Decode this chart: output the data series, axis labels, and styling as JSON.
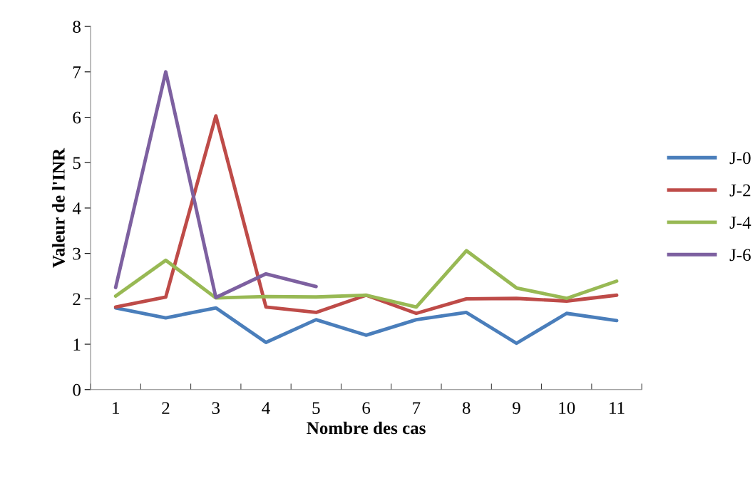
{
  "chart_data": {
    "type": "line",
    "xlabel": "Nombre des cas",
    "ylabel": "Valeur de l'INR",
    "categories": [
      "1",
      "2",
      "3",
      "4",
      "5",
      "6",
      "7",
      "8",
      "9",
      "10",
      "11"
    ],
    "series": [
      {
        "name": "J-0",
        "color": "#4a7ebb",
        "values": [
          1.8,
          1.58,
          1.8,
          1.04,
          1.54,
          1.2,
          1.54,
          1.7,
          1.02,
          1.68,
          1.52
        ]
      },
      {
        "name": "J-2",
        "color": "#be4b48",
        "values": [
          1.82,
          2.04,
          6.03,
          1.82,
          1.7,
          2.08,
          1.68,
          2.0,
          2.01,
          1.95,
          2.08
        ]
      },
      {
        "name": "J-4",
        "color": "#98b954",
        "values": [
          2.06,
          2.85,
          2.02,
          2.05,
          2.04,
          2.08,
          1.82,
          3.06,
          2.24,
          2.01,
          2.39
        ]
      },
      {
        "name": "J-6",
        "color": "#7d60a0",
        "values": [
          2.25,
          7.0,
          2.03,
          2.55,
          2.27,
          null,
          null,
          null,
          null,
          null,
          null
        ]
      }
    ],
    "ylim": [
      0,
      8
    ],
    "yticks": [
      0,
      1,
      2,
      3,
      4,
      5,
      6,
      7,
      8
    ],
    "grid": false,
    "legend": "right",
    "marker": "none",
    "line_style": "solid"
  }
}
